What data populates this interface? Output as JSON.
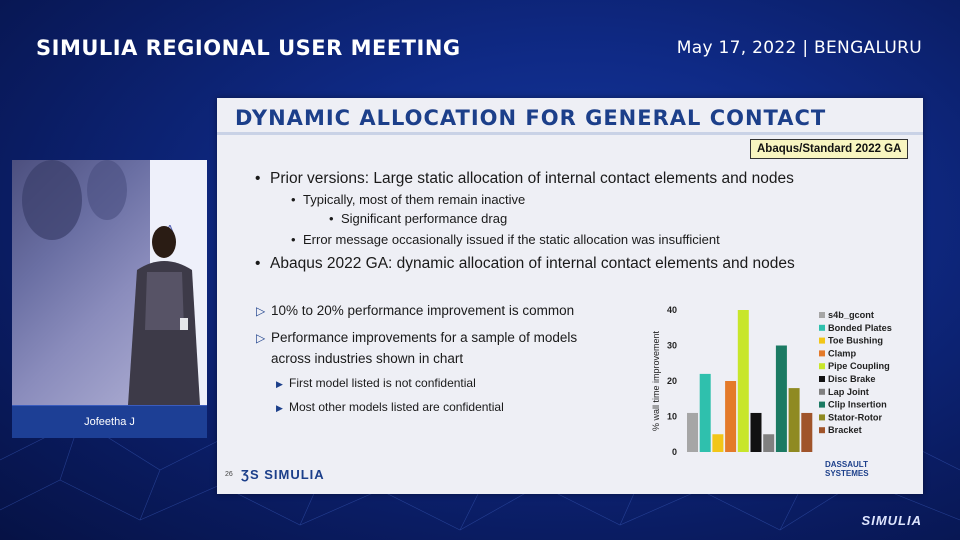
{
  "header": {
    "event_title": "SIMULIA REGIONAL USER MEETING",
    "date_location": "May 17, 2022 | BENGALURU"
  },
  "speaker": {
    "name": "Jofeetha J",
    "screen_fragment": "• A"
  },
  "slide": {
    "title": "DYNAMIC ALLOCATION FOR GENERAL CONTACT",
    "badge": "Abaqus/Standard 2022 GA",
    "bullets": [
      "Prior versions: Large static allocation of internal contact elements and nodes",
      "Typically, most of them remain inactive",
      "Significant performance drag",
      "Error message occasionally issued if the static allocation was insufficient",
      "Abaqus 2022 GA: dynamic allocation of internal contact elements and nodes"
    ],
    "points": [
      "10% to 20% performance improvement is common",
      "Performance improvements for a sample of models",
      "across industries shown in chart",
      "First model listed is not confidential",
      "Most other models listed are confidential"
    ],
    "page_number": "26",
    "simulia_logo": "SIMULIA",
    "ds_logo_line1": "DASSAULT",
    "ds_logo_line2": "SYSTEMES"
  },
  "footer_logo": "SIMULIA",
  "chart_data": {
    "type": "bar",
    "ylabel": "% wall time improvement",
    "ylim": [
      0,
      40
    ],
    "yticks": [
      "0",
      "10",
      "20",
      "30",
      "40"
    ],
    "categories": [
      "s4b_gcont",
      "Bonded Plates",
      "Toe Bushing",
      "Clamp",
      "Pipe Coupling",
      "Disc Brake",
      "Lap Joint",
      "Clip Insertion",
      "Stator-Rotor",
      "Bracket"
    ],
    "values": [
      11,
      22,
      5,
      20,
      40,
      11,
      5,
      30,
      18,
      11
    ],
    "colors": [
      "#a6a6a6",
      "#2fc0ad",
      "#f2c618",
      "#e47a2a",
      "#c8e62b",
      "#111111",
      "#808080",
      "#1b7a63",
      "#8f8a22",
      "#a0542a"
    ],
    "legend_position": "right"
  }
}
